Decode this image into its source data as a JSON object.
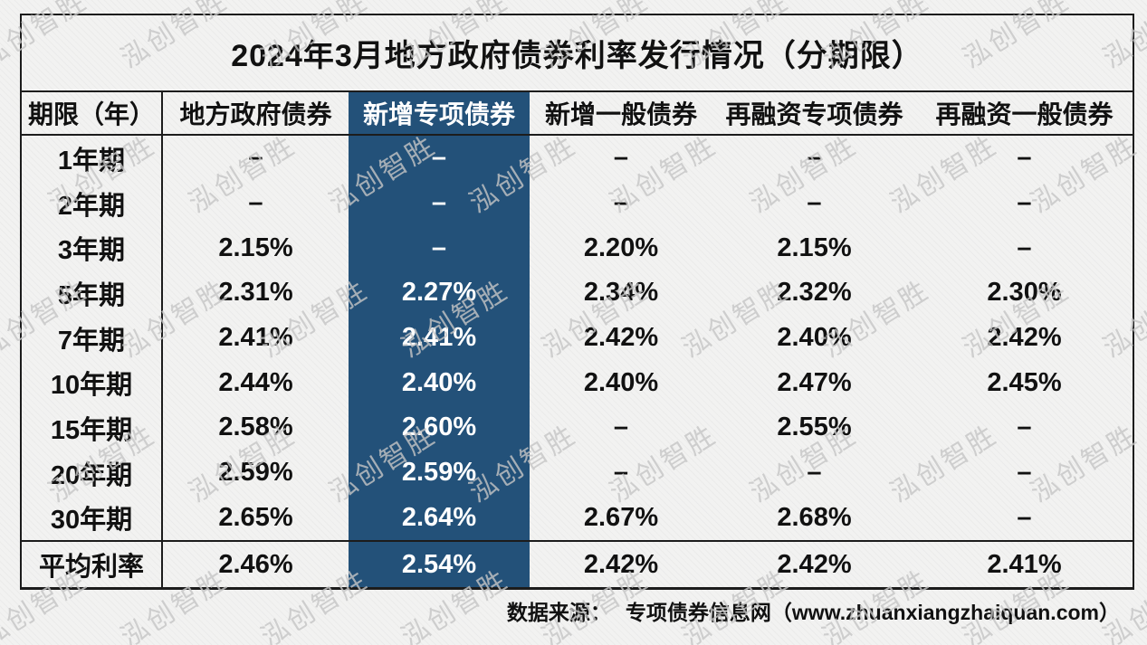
{
  "title": "2024年3月地方政府债券利率发行情况（分期限）",
  "watermark": {
    "text": "泓创智胜"
  },
  "footer": {
    "source_label": "数据来源：",
    "source_text": "专项债券信息网（www.zhuanxiangzhaiquan.com）"
  },
  "colors": {
    "highlight_column_bg": "#235179",
    "highlight_column_text": "#ffffff",
    "border": "#1c1c1c",
    "page_bg": "#f2f2f1",
    "watermark": "#c6c6c6"
  },
  "chart_data": {
    "type": "table",
    "title": "2024年3月地方政府债券利率发行情况（分期限）",
    "columns": [
      "期限（年）",
      "地方政府债券",
      "新增专项债券",
      "新增一般债券",
      "再融资专项债券",
      "再融资一般债券"
    ],
    "highlighted_column": "新增专项债券",
    "rows": [
      [
        "1年期",
        "–",
        "–",
        "–",
        "–",
        "–"
      ],
      [
        "2年期",
        "–",
        "–",
        "–",
        "–",
        "–"
      ],
      [
        "3年期",
        "2.15%",
        "–",
        "2.20%",
        "2.15%",
        "–"
      ],
      [
        "5年期",
        "2.31%",
        "2.27%",
        "2.34%",
        "2.32%",
        "2.30%"
      ],
      [
        "7年期",
        "2.41%",
        "2.41%",
        "2.42%",
        "2.40%",
        "2.42%"
      ],
      [
        "10年期",
        "2.44%",
        "2.40%",
        "2.40%",
        "2.47%",
        "2.45%"
      ],
      [
        "15年期",
        "2.58%",
        "2.60%",
        "–",
        "2.55%",
        "–"
      ],
      [
        "20年期",
        "2.59%",
        "2.59%",
        "–",
        "–",
        "–"
      ],
      [
        "30年期",
        "2.65%",
        "2.64%",
        "2.67%",
        "2.68%",
        "–"
      ]
    ],
    "summary_row": [
      "平均利率",
      "2.46%",
      "2.54%",
      "2.42%",
      "2.42%",
      "2.41%"
    ],
    "source": "数据来源： 专项债券信息网（www.zhuanxiangzhaiquan.com）"
  }
}
